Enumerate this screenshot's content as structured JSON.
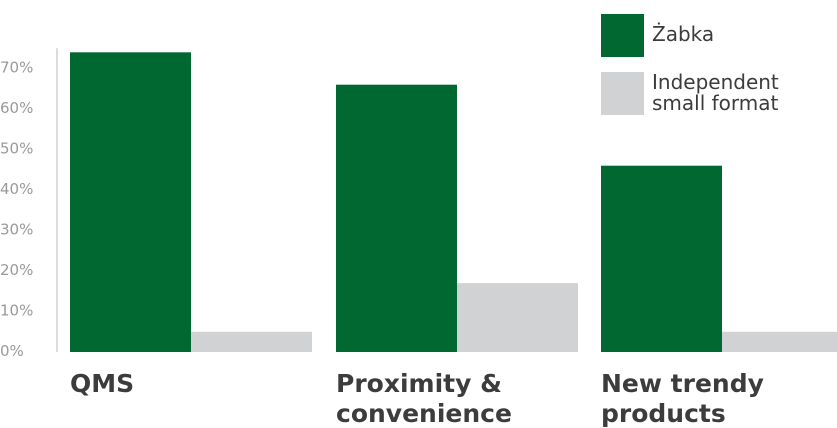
{
  "chart_data": {
    "type": "bar",
    "categories": [
      "QMS",
      "Proximity &\nconvenience",
      "New trendy\nproducts"
    ],
    "series": [
      {
        "name": "Żabka",
        "values": [
          74,
          66,
          46
        ],
        "color": "#006830"
      },
      {
        "name": "Independent\nsmall format",
        "values": [
          5,
          17,
          5
        ],
        "color": "#d1d2d4"
      }
    ],
    "yticks": [
      "0%",
      "10%",
      "20%",
      "30%",
      "40%",
      "50%",
      "60%",
      "70%"
    ],
    "ylim": [
      0,
      75
    ],
    "title": "",
    "xlabel": "",
    "ylabel": "",
    "legend_position": "top-right",
    "grid": false,
    "axis_color": "#b9b9b9"
  }
}
